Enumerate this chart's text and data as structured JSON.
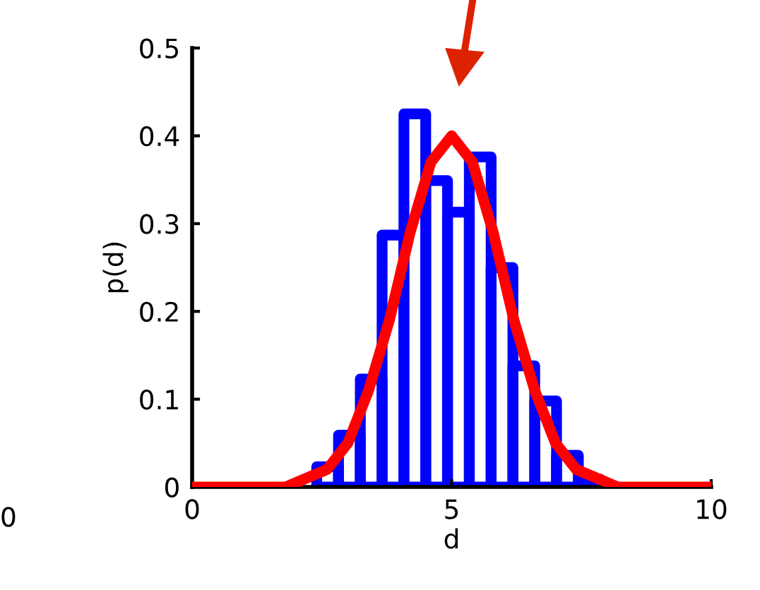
{
  "chart_data": [
    {
      "type": "histogram",
      "xlabel": "d",
      "ylabel": "p(d)",
      "bins": [
        2.4,
        2.82,
        3.24,
        3.66,
        4.08,
        4.5,
        4.92,
        5.34,
        5.76,
        6.18,
        6.6,
        7.02,
        7.44,
        7.86
      ],
      "values": [
        0.023,
        0.059,
        0.123,
        0.287,
        0.425,
        0.349,
        0.313,
        0.376,
        0.25,
        0.138,
        0.098,
        0.036,
        0.009
      ],
      "color": "#0000ff",
      "series": [
        {
          "type": "line",
          "color": "#ff0000",
          "x": [
            0,
            1,
            1.8,
            2.2,
            2.6,
            3,
            3.4,
            3.8,
            4.2,
            4.6,
            5,
            5.4,
            5.8,
            6.2,
            6.6,
            7,
            7.4,
            7.8,
            8.2,
            9,
            10
          ],
          "values": [
            0,
            0,
            0,
            0.01,
            0.02,
            0.05,
            0.11,
            0.19,
            0.29,
            0.37,
            0.4,
            0.37,
            0.29,
            0.19,
            0.11,
            0.05,
            0.02,
            0.01,
            0,
            0,
            0
          ]
        }
      ],
      "xlim": [
        0,
        10
      ],
      "xticks": [
        0,
        5,
        10
      ],
      "ylim": [
        0,
        0.5
      ],
      "yticks": [
        0,
        0.1,
        0.2,
        0.3,
        0.4,
        0.5
      ],
      "annotations": [
        "0"
      ],
      "grid": false
    }
  ]
}
